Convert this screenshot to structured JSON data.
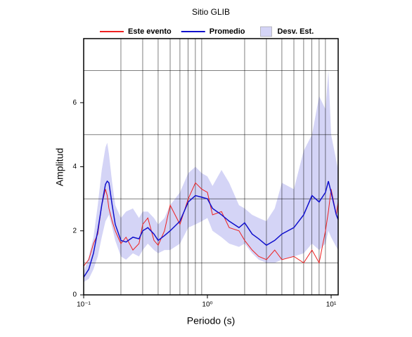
{
  "chart_data": {
    "type": "line",
    "title": "Sitio GLIB",
    "xlabel": "Periodo (s)",
    "ylabel": "Amplitud",
    "xscale": "log",
    "x": [
      0.1,
      0.11,
      0.12,
      0.13,
      0.14,
      0.15,
      0.155,
      0.16,
      0.17,
      0.18,
      0.2,
      0.22,
      0.25,
      0.28,
      0.3,
      0.33,
      0.37,
      0.4,
      0.45,
      0.5,
      0.6,
      0.7,
      0.8,
      0.9,
      1.0,
      1.1,
      1.3,
      1.5,
      1.8,
      2.0,
      2.3,
      2.6,
      3.0,
      3.5,
      4.0,
      5.0,
      6.0,
      7.0,
      8.0,
      9.0,
      9.5,
      10,
      11,
      11.4
    ],
    "series": [
      {
        "name": "Este evento",
        "color": "#ee2020",
        "values": [
          0.9,
          1.1,
          1.6,
          1.9,
          2.8,
          3.3,
          3.1,
          2.7,
          2.3,
          2.0,
          1.6,
          1.8,
          1.4,
          1.6,
          2.2,
          2.4,
          1.7,
          1.55,
          2.0,
          2.8,
          2.2,
          3.0,
          3.5,
          3.3,
          3.2,
          2.5,
          2.6,
          2.1,
          2.0,
          1.7,
          1.4,
          1.2,
          1.1,
          1.4,
          1.1,
          1.2,
          1.0,
          1.4,
          1.0,
          2.0,
          2.6,
          3.3,
          2.5,
          2.9
        ]
      },
      {
        "name": "Promedio",
        "color": "#1010cc",
        "values": [
          0.55,
          0.8,
          1.3,
          2.0,
          2.8,
          3.45,
          3.55,
          3.5,
          2.8,
          2.2,
          1.7,
          1.65,
          1.8,
          1.75,
          2.0,
          2.1,
          1.9,
          1.7,
          1.85,
          2.0,
          2.3,
          2.9,
          3.1,
          3.05,
          3.0,
          2.7,
          2.5,
          2.3,
          2.1,
          2.25,
          1.9,
          1.75,
          1.55,
          1.7,
          1.9,
          2.1,
          2.5,
          3.1,
          2.9,
          3.2,
          3.55,
          3.2,
          2.5,
          2.35
        ]
      }
    ],
    "band": {
      "name": "Desv. Est.",
      "color": "#d4d4f6",
      "lower": [
        0.4,
        0.5,
        0.8,
        1.2,
        1.8,
        2.3,
        2.4,
        2.5,
        2.1,
        1.7,
        1.2,
        1.1,
        1.3,
        1.2,
        1.4,
        1.6,
        1.4,
        1.3,
        1.4,
        1.4,
        1.6,
        2.1,
        2.2,
        2.3,
        2.4,
        2.0,
        1.8,
        1.6,
        1.5,
        1.6,
        1.3,
        1.1,
        1.0,
        1.0,
        1.1,
        1.2,
        1.3,
        1.6,
        1.4,
        1.6,
        2.0,
        1.8,
        1.5,
        1.4
      ],
      "upper": [
        0.7,
        1.2,
        1.8,
        2.8,
        3.9,
        4.6,
        4.75,
        4.4,
        3.5,
        2.8,
        2.4,
        2.6,
        2.7,
        2.4,
        2.6,
        2.6,
        2.4,
        2.2,
        2.4,
        2.8,
        3.2,
        3.8,
        4.0,
        3.8,
        3.7,
        3.4,
        3.9,
        3.5,
        2.8,
        2.7,
        2.5,
        2.4,
        2.3,
        2.7,
        3.5,
        3.3,
        4.5,
        5.0,
        6.2,
        5.8,
        7.0,
        5.0,
        4.2,
        3.9
      ]
    },
    "xlim": [
      0.1,
      11.4
    ],
    "ylim": [
      0,
      8
    ],
    "xticks": [
      {
        "value": 0.1,
        "label": "10⁻¹"
      },
      {
        "value": 1,
        "label": "10⁰"
      },
      {
        "value": 10,
        "label": "10¹"
      }
    ],
    "xgrid": [
      0.2,
      0.3,
      0.4,
      0.5,
      0.6,
      0.7,
      0.8,
      0.9,
      2,
      3,
      4,
      5,
      6,
      7,
      8,
      9
    ],
    "yticks": [
      0,
      2,
      4,
      6
    ],
    "ygrid": [
      1,
      3,
      5,
      7
    ],
    "grid": true,
    "legend": "top"
  }
}
